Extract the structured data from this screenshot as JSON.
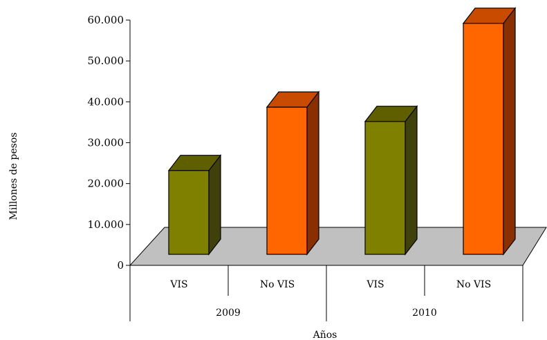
{
  "chart_data": {
    "type": "bar",
    "title": "",
    "xlabel": "Años",
    "ylabel": "Millones de pesos",
    "ylim": [
      0,
      60000
    ],
    "y_ticks": [
      0,
      10000,
      20000,
      30000,
      40000,
      50000,
      60000
    ],
    "y_tick_labels": [
      "0",
      "10.000",
      "20.000",
      "30.000",
      "40.000",
      "50.000",
      "60.000"
    ],
    "groups": [
      {
        "label": "2009",
        "categories": [
          "VIS",
          "No VIS"
        ]
      },
      {
        "label": "2010",
        "categories": [
          "VIS",
          "No VIS"
        ]
      }
    ],
    "categories": [
      "VIS",
      "No VIS",
      "VIS",
      "No VIS"
    ],
    "values": [
      20500,
      36000,
      32500,
      56500
    ],
    "bar_colors": {
      "VIS": {
        "front": "#808000",
        "side": "#40400a",
        "top": "#5f5f00"
      },
      "No VIS": {
        "front": "#ff6600",
        "side": "#8a3000",
        "top": "#c84b00"
      }
    },
    "floor_color": "#c0c0c0",
    "style": "3d-column",
    "grid": false,
    "legend": "none"
  }
}
